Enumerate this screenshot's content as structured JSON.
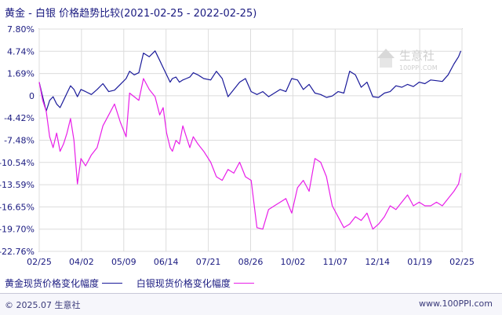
{
  "title": "黄金 - 白银 价格趋势比较(2021-02-25 - 2022-02-25)",
  "watermark": {
    "name": "生意社",
    "url": "100PPI.COM"
  },
  "footer": {
    "copyright": "© 2025.07 生意社",
    "site": "www.100PPI.com"
  },
  "colors": {
    "gold": "#1a1a9a",
    "silver": "#e81ee8",
    "grid": "#dcdcdc",
    "axis": "#555555"
  },
  "chart_data": {
    "type": "line",
    "title": "黄金 - 白银 价格趋势比较(2021-02-25 - 2022-02-25)",
    "x_ticks": [
      "02/25",
      "04/02",
      "05/09",
      "06/14",
      "07/21",
      "08/26",
      "10/02",
      "11/07",
      "12/14",
      "01/19",
      "02/25"
    ],
    "y_ticks": [
      "7.80%",
      "4.74%",
      "1.69%",
      "0",
      "-4.42%",
      "-7.48%",
      "-10.54%",
      "-13.59%",
      "-16.65%",
      "-19.70%",
      "-22.76%"
    ],
    "ylim": [
      -22.76,
      7.8
    ],
    "xlim": [
      0,
      365
    ],
    "grid": true,
    "legend_position": "bottom-left",
    "series": [
      {
        "name": "黄金现货价格变化幅度",
        "color": "#1a1a9a",
        "x": [
          0,
          3,
          6,
          9,
          12,
          15,
          18,
          21,
          24,
          27,
          30,
          33,
          36,
          40,
          45,
          50,
          55,
          60,
          65,
          70,
          75,
          78,
          82,
          86,
          90,
          95,
          100,
          104,
          107,
          110,
          113,
          115,
          118,
          121,
          124,
          127,
          130,
          133,
          137,
          142,
          148,
          153,
          158,
          163,
          168,
          173,
          178,
          183,
          188,
          193,
          198,
          203,
          208,
          213,
          218,
          223,
          228,
          233,
          238,
          243,
          248,
          253,
          258,
          263,
          268,
          273,
          278,
          283,
          288,
          293,
          298,
          303,
          308,
          313,
          318,
          323,
          328,
          333,
          338,
          343,
          348,
          353,
          358,
          362,
          364
        ],
        "y": [
          0.5,
          -1.5,
          -3.5,
          -2.0,
          -1.5,
          -2.5,
          -3.0,
          -2.0,
          -1.0,
          0.0,
          -0.5,
          -1.5,
          -0.5,
          -0.8,
          -1.2,
          -0.5,
          0.3,
          -0.8,
          -0.6,
          0.2,
          1.0,
          2.0,
          1.5,
          1.8,
          4.5,
          4.0,
          4.8,
          3.5,
          2.5,
          1.5,
          0.5,
          1.0,
          1.2,
          0.5,
          0.8,
          1.0,
          1.2,
          1.8,
          1.5,
          1.0,
          0.8,
          2.0,
          1.0,
          -1.5,
          -0.5,
          0.5,
          1.0,
          -0.8,
          -1.2,
          -0.8,
          -1.5,
          -1.0,
          -0.5,
          -0.8,
          1.0,
          0.8,
          -0.5,
          0.2,
          -1.0,
          -1.2,
          -1.6,
          -1.4,
          -0.8,
          -1.0,
          2.0,
          1.5,
          -0.2,
          0.5,
          -1.5,
          -1.6,
          -1.0,
          -0.8,
          0.0,
          -0.2,
          0.2,
          -0.1,
          0.5,
          0.3,
          0.8,
          0.7,
          0.6,
          1.5,
          3.0,
          4.0,
          4.8
        ]
      },
      {
        "name": "白银现货价格变化幅度",
        "color": "#e81ee8",
        "x": [
          0,
          3,
          6,
          9,
          12,
          15,
          18,
          21,
          24,
          27,
          30,
          33,
          36,
          40,
          45,
          50,
          55,
          60,
          65,
          70,
          75,
          78,
          82,
          86,
          90,
          95,
          100,
          104,
          107,
          110,
          113,
          115,
          118,
          121,
          124,
          127,
          130,
          133,
          137,
          142,
          148,
          153,
          158,
          163,
          168,
          173,
          178,
          183,
          188,
          193,
          198,
          203,
          208,
          213,
          218,
          223,
          228,
          233,
          238,
          243,
          248,
          253,
          258,
          263,
          268,
          273,
          278,
          283,
          288,
          293,
          298,
          303,
          308,
          313,
          318,
          323,
          328,
          333,
          338,
          343,
          348,
          353,
          358,
          362,
          364
        ],
        "y": [
          0.5,
          -2.0,
          -3.5,
          -7.0,
          -8.5,
          -6.5,
          -9.0,
          -8.0,
          -6.5,
          -4.5,
          -7.5,
          -13.5,
          -10.0,
          -11.0,
          -9.5,
          -8.5,
          -5.5,
          -4.0,
          -2.5,
          -5.0,
          -7.0,
          -1.0,
          -1.5,
          -2.0,
          1.0,
          -0.5,
          -1.5,
          -4.0,
          -3.0,
          -6.5,
          -8.5,
          -9.0,
          -7.5,
          -8.0,
          -5.5,
          -7.0,
          -8.5,
          -7.0,
          -8.0,
          -9.0,
          -10.5,
          -12.5,
          -13.0,
          -11.5,
          -12.0,
          -10.5,
          -12.5,
          -13.0,
          -19.5,
          -19.7,
          -17.0,
          -16.5,
          -16.0,
          -15.5,
          -17.5,
          -14.0,
          -13.0,
          -14.5,
          -10.0,
          -10.5,
          -12.5,
          -16.5,
          -18.0,
          -19.5,
          -19.0,
          -18.0,
          -18.5,
          -17.5,
          -19.7,
          -19.0,
          -18.0,
          -16.5,
          -17.0,
          -16.0,
          -15.0,
          -16.5,
          -16.0,
          -16.5,
          -16.5,
          -16.0,
          -16.5,
          -15.5,
          -14.5,
          -13.5,
          -12.0
        ]
      }
    ]
  }
}
